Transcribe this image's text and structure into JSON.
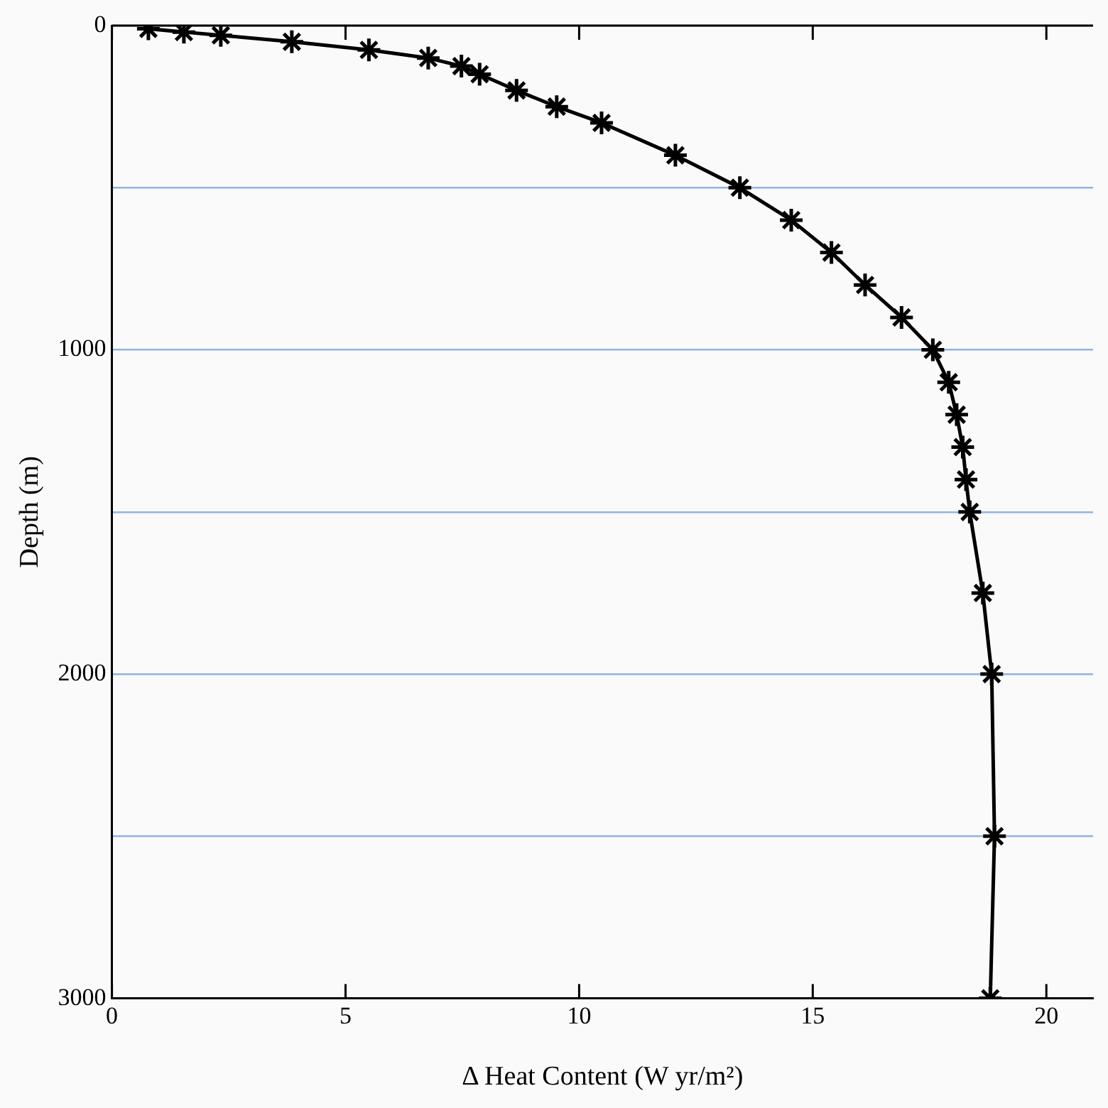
{
  "chart_data": {
    "type": "line",
    "xlabel": "Δ Heat Content (W yr/m²)",
    "ylabel": "Depth (m)",
    "series": [
      {
        "color": "#000000",
        "x": [
          0.78,
          1.54,
          2.33,
          3.85,
          5.5,
          6.77,
          7.48,
          7.87,
          8.66,
          9.52,
          10.48,
          12.06,
          13.44,
          14.54,
          15.4,
          16.12,
          16.9,
          17.57,
          17.91,
          18.08,
          18.21,
          18.28,
          18.36,
          18.64,
          18.83,
          18.89,
          18.8
        ],
        "values": [
          10,
          20,
          30,
          50,
          75,
          100,
          125,
          150,
          200,
          250,
          300,
          400,
          500,
          600,
          700,
          800,
          900,
          1000,
          1100,
          1200,
          1300,
          1400,
          1500,
          1750,
          2000,
          2500,
          3000
        ]
      }
    ],
    "xlim": [
      0,
      21
    ],
    "xticks": [
      0,
      5,
      10,
      15,
      20
    ],
    "ylim": [
      3000,
      0
    ],
    "yticks": [
      0,
      {
        "value": 500,
        "label": null
      },
      1000,
      {
        "value": 1500,
        "label": null
      },
      2000,
      {
        "value": 2500,
        "label": null
      },
      3000
    ],
    "grid": "y",
    "legend": false,
    "marker": "cross",
    "line_style": "solid"
  }
}
